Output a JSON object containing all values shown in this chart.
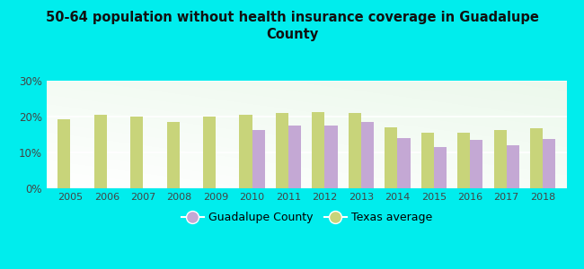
{
  "title": "50-64 population without health insurance coverage in Guadalupe\nCounty",
  "years": [
    2005,
    2006,
    2007,
    2008,
    2009,
    2010,
    2011,
    2012,
    2013,
    2014,
    2015,
    2016,
    2017,
    2018
  ],
  "guadalupe": [
    null,
    null,
    null,
    null,
    null,
    16.2,
    17.5,
    17.4,
    18.4,
    14.0,
    11.6,
    13.4,
    12.0,
    13.7
  ],
  "texas": [
    19.2,
    20.5,
    20.0,
    18.6,
    19.9,
    20.5,
    21.0,
    21.3,
    20.9,
    17.0,
    15.4,
    15.4,
    16.2,
    16.7
  ],
  "guadalupe_color": "#c4a8d4",
  "texas_color": "#c8d47a",
  "background_outer": "#00eded",
  "ylim": [
    0,
    30
  ],
  "yticks": [
    0,
    10,
    20,
    30
  ],
  "legend_guadalupe": "Guadalupe County",
  "legend_texas": "Texas average",
  "bar_width": 0.35
}
